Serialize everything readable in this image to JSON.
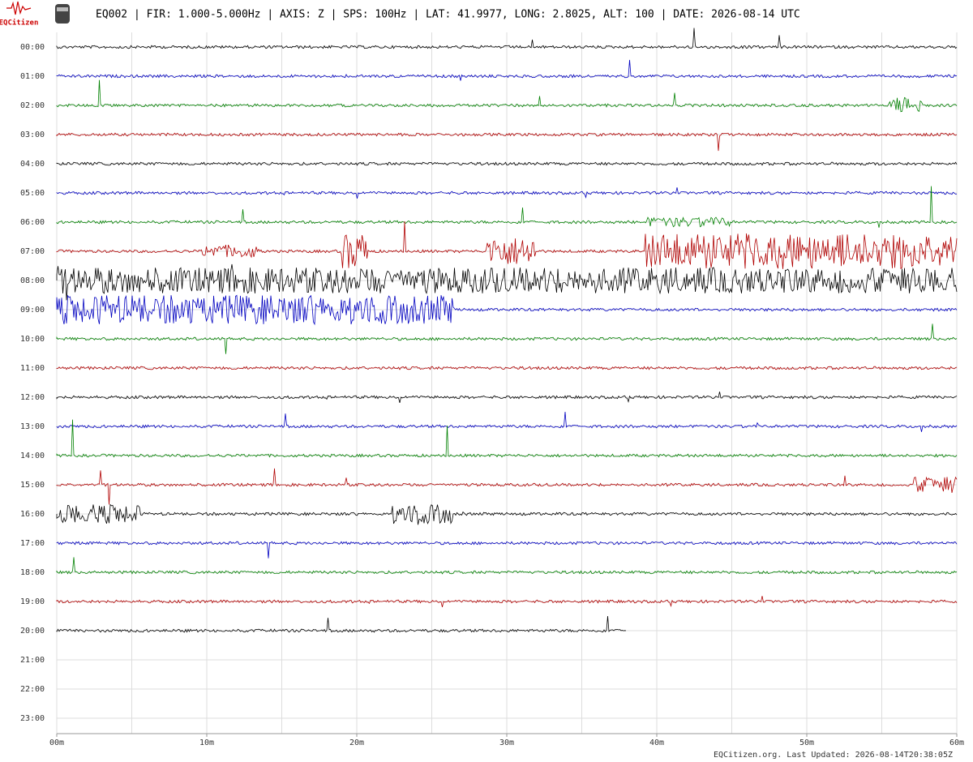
{
  "header": {
    "logo": "EQCitizen",
    "title": "EQ002 | FIR: 1.000-5.000Hz | AXIS: Z | SPS: 100Hz | LAT: 41.9977, LONG: 2.8025, ALT: 100 | DATE: 2026-08-14 UTC"
  },
  "rows": [
    "00:00",
    "01:00",
    "02:00",
    "03:00",
    "04:00",
    "05:00",
    "06:00",
    "07:00",
    "08:00",
    "09:00",
    "10:00",
    "11:00",
    "12:00",
    "13:00",
    "14:00",
    "15:00",
    "16:00",
    "17:00",
    "18:00",
    "19:00",
    "20:00",
    "21:00",
    "22:00",
    "23:00"
  ],
  "minute_labels": [
    "00m",
    "10m",
    "20m",
    "30m",
    "40m",
    "50m",
    "60m"
  ],
  "footer": "EQCitizen.org. Last Updated: 2026-08-14T20:38:05Z"
}
